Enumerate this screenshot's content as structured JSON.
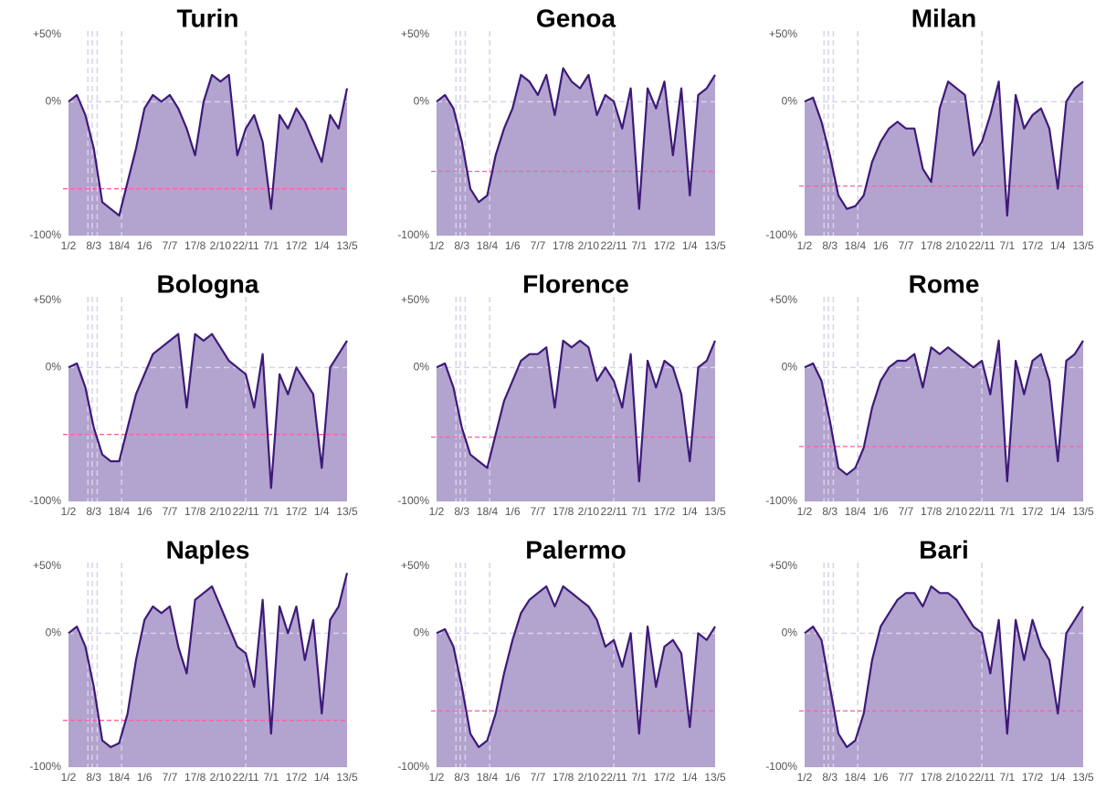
{
  "chart_data": [
    {
      "type": "area",
      "title": "Turin",
      "categories": [
        "1/2",
        null,
        null,
        "8/3",
        null,
        null,
        "18/4",
        null,
        null,
        "1/6",
        null,
        null,
        "7/7",
        null,
        null,
        "17/8",
        null,
        null,
        "2/10",
        null,
        null,
        "22/11",
        null,
        null,
        "7/1",
        null,
        null,
        "17/2",
        null,
        null,
        "1/4",
        null,
        null,
        "13/5"
      ],
      "values": [
        0,
        5,
        -10,
        -35,
        -75,
        -80,
        -85,
        -60,
        -35,
        -5,
        5,
        0,
        5,
        -5,
        -20,
        -40,
        0,
        20,
        15,
        20,
        -40,
        -20,
        -10,
        -30,
        -80,
        -10,
        -20,
        -5,
        -15,
        -30,
        -45,
        -10,
        -20,
        10
      ],
      "color": "#3d1a78",
      "fill": "#b3a3cf",
      "ylim": [
        -100,
        50
      ],
      "yticks": [
        {
          "value": 50,
          "label": "+50%"
        },
        {
          "value": 0,
          "label": "0%"
        },
        {
          "value": -100,
          "label": "-100%"
        }
      ],
      "ref_line": -65,
      "ref_color": "#ff5fa0"
    },
    {
      "type": "area",
      "title": "Genoa",
      "categories": [
        "1/2",
        null,
        null,
        "8/3",
        null,
        null,
        "18/4",
        null,
        null,
        "1/6",
        null,
        null,
        "7/7",
        null,
        null,
        "17/8",
        null,
        null,
        "2/10",
        null,
        null,
        "22/11",
        null,
        null,
        "7/1",
        null,
        null,
        "17/2",
        null,
        null,
        "1/4",
        null,
        null,
        "13/5"
      ],
      "values": [
        0,
        5,
        -5,
        -30,
        -65,
        -75,
        -70,
        -40,
        -20,
        -5,
        20,
        15,
        5,
        20,
        -10,
        25,
        15,
        10,
        20,
        -10,
        5,
        0,
        -20,
        10,
        -80,
        10,
        -5,
        15,
        -40,
        10,
        -70,
        5,
        10,
        20
      ],
      "color": "#3d1a78",
      "fill": "#b3a3cf",
      "ylim": [
        -100,
        50
      ],
      "yticks": [
        {
          "value": 50,
          "label": "+50%"
        },
        {
          "value": 0,
          "label": "0%"
        },
        {
          "value": -100,
          "label": "-100%"
        }
      ],
      "ref_line": -52,
      "ref_color": "#ff5fa0"
    },
    {
      "type": "area",
      "title": "Milan",
      "categories": [
        "1/2",
        null,
        null,
        "8/3",
        null,
        null,
        "18/4",
        null,
        null,
        "1/6",
        null,
        null,
        "7/7",
        null,
        null,
        "17/8",
        null,
        null,
        "2/10",
        null,
        null,
        "22/11",
        null,
        null,
        "7/1",
        null,
        null,
        "17/2",
        null,
        null,
        "1/4",
        null,
        null,
        "13/5"
      ],
      "values": [
        0,
        3,
        -15,
        -40,
        -70,
        -80,
        -78,
        -70,
        -45,
        -30,
        -20,
        -15,
        -20,
        -20,
        -50,
        -60,
        -5,
        15,
        10,
        5,
        -40,
        -30,
        -10,
        15,
        -85,
        5,
        -20,
        -10,
        -5,
        -20,
        -65,
        0,
        10,
        15
      ],
      "color": "#3d1a78",
      "fill": "#b3a3cf",
      "ylim": [
        -100,
        50
      ],
      "yticks": [
        {
          "value": 50,
          "label": "+50%"
        },
        {
          "value": 0,
          "label": "0%"
        },
        {
          "value": -100,
          "label": "-100%"
        }
      ],
      "ref_line": -63,
      "ref_color": "#ff5fa0"
    },
    {
      "type": "area",
      "title": "Bologna",
      "categories": [
        "1/2",
        null,
        null,
        "8/3",
        null,
        null,
        "18/4",
        null,
        null,
        "1/6",
        null,
        null,
        "7/7",
        null,
        null,
        "17/8",
        null,
        null,
        "2/10",
        null,
        null,
        "22/11",
        null,
        null,
        "7/1",
        null,
        null,
        "17/2",
        null,
        null,
        "1/4",
        null,
        null,
        "13/5"
      ],
      "values": [
        0,
        3,
        -15,
        -45,
        -65,
        -70,
        -70,
        -45,
        -20,
        -5,
        10,
        15,
        20,
        25,
        -30,
        25,
        20,
        25,
        15,
        5,
        0,
        -5,
        -30,
        10,
        -90,
        -5,
        -20,
        0,
        -10,
        -20,
        -75,
        0,
        10,
        20
      ],
      "color": "#3d1a78",
      "fill": "#b3a3cf",
      "ylim": [
        -100,
        50
      ],
      "yticks": [
        {
          "value": 50,
          "label": "+50%"
        },
        {
          "value": 0,
          "label": "0%"
        },
        {
          "value": -100,
          "label": "-100%"
        }
      ],
      "ref_line": -50,
      "ref_color": "#ff5fa0"
    },
    {
      "type": "area",
      "title": "Florence",
      "categories": [
        "1/2",
        null,
        null,
        "8/3",
        null,
        null,
        "18/4",
        null,
        null,
        "1/6",
        null,
        null,
        "7/7",
        null,
        null,
        "17/8",
        null,
        null,
        "2/10",
        null,
        null,
        "22/11",
        null,
        null,
        "7/1",
        null,
        null,
        "17/2",
        null,
        null,
        "1/4",
        null,
        null,
        "13/5"
      ],
      "values": [
        0,
        3,
        -15,
        -45,
        -65,
        -70,
        -75,
        -50,
        -25,
        -10,
        5,
        10,
        10,
        15,
        -30,
        20,
        15,
        20,
        15,
        -10,
        0,
        -10,
        -30,
        10,
        -85,
        5,
        -15,
        5,
        0,
        -20,
        -70,
        0,
        5,
        20
      ],
      "color": "#3d1a78",
      "fill": "#b3a3cf",
      "ylim": [
        -100,
        50
      ],
      "yticks": [
        {
          "value": 50,
          "label": "+50%"
        },
        {
          "value": 0,
          "label": "0%"
        },
        {
          "value": -100,
          "label": "-100%"
        }
      ],
      "ref_line": -52,
      "ref_color": "#ff5fa0"
    },
    {
      "type": "area",
      "title": "Rome",
      "categories": [
        "1/2",
        null,
        null,
        "8/3",
        null,
        null,
        "18/4",
        null,
        null,
        "1/6",
        null,
        null,
        "7/7",
        null,
        null,
        "17/8",
        null,
        null,
        "2/10",
        null,
        null,
        "22/11",
        null,
        null,
        "7/1",
        null,
        null,
        "17/2",
        null,
        null,
        "1/4",
        null,
        null,
        "13/5"
      ],
      "values": [
        0,
        3,
        -10,
        -40,
        -75,
        -80,
        -75,
        -60,
        -30,
        -10,
        0,
        5,
        5,
        10,
        -15,
        15,
        10,
        15,
        10,
        5,
        0,
        5,
        -20,
        20,
        -85,
        5,
        -20,
        5,
        10,
        -10,
        -70,
        5,
        10,
        20
      ],
      "color": "#3d1a78",
      "fill": "#b3a3cf",
      "ylim": [
        -100,
        50
      ],
      "yticks": [
        {
          "value": 50,
          "label": "+50%"
        },
        {
          "value": 0,
          "label": "0%"
        },
        {
          "value": -100,
          "label": "-100%"
        }
      ],
      "ref_line": -59,
      "ref_color": "#ff5fa0"
    },
    {
      "type": "area",
      "title": "Naples",
      "categories": [
        "1/2",
        null,
        null,
        "8/3",
        null,
        null,
        "18/4",
        null,
        null,
        "1/6",
        null,
        null,
        "7/7",
        null,
        null,
        "17/8",
        null,
        null,
        "2/10",
        null,
        null,
        "22/11",
        null,
        null,
        "7/1",
        null,
        null,
        "17/2",
        null,
        null,
        "1/4",
        null,
        null,
        "13/5"
      ],
      "values": [
        0,
        5,
        -10,
        -40,
        -80,
        -85,
        -82,
        -60,
        -20,
        10,
        20,
        15,
        20,
        -10,
        -30,
        25,
        30,
        35,
        20,
        5,
        -10,
        -15,
        -40,
        25,
        -75,
        20,
        0,
        20,
        -20,
        10,
        -60,
        10,
        20,
        45
      ],
      "color": "#3d1a78",
      "fill": "#b3a3cf",
      "ylim": [
        -100,
        50
      ],
      "yticks": [
        {
          "value": 50,
          "label": "+50%"
        },
        {
          "value": 0,
          "label": "0%"
        },
        {
          "value": -100,
          "label": "-100%"
        }
      ],
      "ref_line": -65,
      "ref_color": "#ff5fa0"
    },
    {
      "type": "area",
      "title": "Palermo",
      "categories": [
        "1/2",
        null,
        null,
        "8/3",
        null,
        null,
        "18/4",
        null,
        null,
        "1/6",
        null,
        null,
        "7/7",
        null,
        null,
        "17/8",
        null,
        null,
        "2/10",
        null,
        null,
        "22/11",
        null,
        null,
        "7/1",
        null,
        null,
        "17/2",
        null,
        null,
        "1/4",
        null,
        null,
        "13/5"
      ],
      "values": [
        0,
        3,
        -10,
        -40,
        -75,
        -85,
        -80,
        -60,
        -30,
        -5,
        15,
        25,
        30,
        35,
        20,
        35,
        30,
        25,
        20,
        10,
        -10,
        -5,
        -25,
        0,
        -75,
        5,
        -40,
        -10,
        -5,
        -15,
        -70,
        0,
        -5,
        5
      ],
      "color": "#3d1a78",
      "fill": "#b3a3cf",
      "ylim": [
        -100,
        50
      ],
      "yticks": [
        {
          "value": 50,
          "label": "+50%"
        },
        {
          "value": 0,
          "label": "0%"
        },
        {
          "value": -100,
          "label": "-100%"
        }
      ],
      "ref_line": -58,
      "ref_color": "#ff5fa0"
    },
    {
      "type": "area",
      "title": "Bari",
      "categories": [
        "1/2",
        null,
        null,
        "8/3",
        null,
        null,
        "18/4",
        null,
        null,
        "1/6",
        null,
        null,
        "7/7",
        null,
        null,
        "17/8",
        null,
        null,
        "2/10",
        null,
        null,
        "22/11",
        null,
        null,
        "7/1",
        null,
        null,
        "17/2",
        null,
        null,
        "1/4",
        null,
        null,
        "13/5"
      ],
      "values": [
        0,
        5,
        -5,
        -40,
        -75,
        -85,
        -80,
        -60,
        -20,
        5,
        15,
        25,
        30,
        30,
        20,
        35,
        30,
        30,
        25,
        15,
        5,
        0,
        -30,
        10,
        -75,
        10,
        -20,
        10,
        -10,
        -20,
        -60,
        0,
        10,
        20
      ],
      "color": "#3d1a78",
      "fill": "#b3a3cf",
      "ylim": [
        -100,
        50
      ],
      "yticks": [
        {
          "value": 50,
          "label": "+50%"
        },
        {
          "value": 0,
          "label": "0%"
        },
        {
          "value": -100,
          "label": "-100%"
        }
      ],
      "ref_line": -58,
      "ref_color": "#ff5fa0"
    }
  ]
}
